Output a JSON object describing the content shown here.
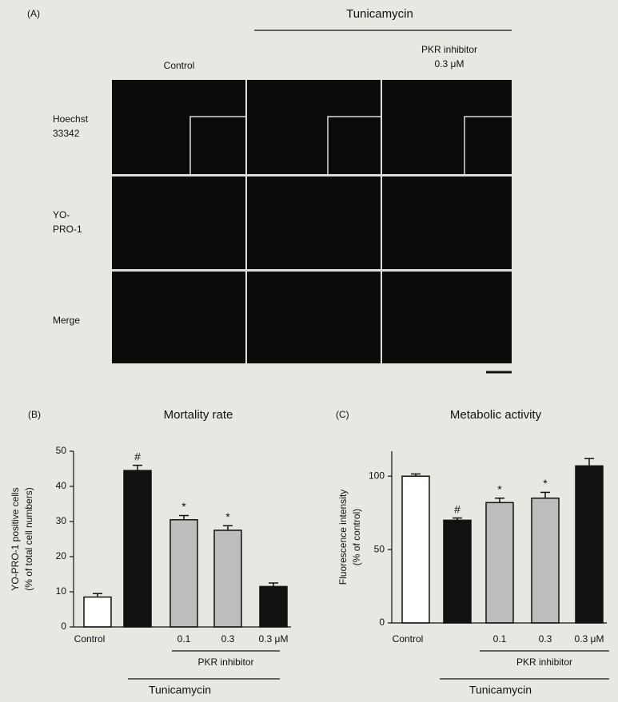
{
  "panel_a": {
    "panel_label": "(A)",
    "treatment": "Tunicamycin",
    "column_labels": [
      [
        "Control"
      ],
      [
        "PKR inhibitor",
        "0.3 μM"
      ]
    ],
    "row_labels": [
      [
        "Hoechst",
        "33342"
      ],
      [
        "YO-",
        "PRO-1"
      ],
      [
        "Merge"
      ]
    ]
  },
  "chart_data": [
    {
      "type": "bar",
      "panel_label": "(B)",
      "title": "Mortality rate",
      "y_label": [
        "YO-PRO-1 positive cells",
        "(% of total cell numbers)"
      ],
      "categories": [
        "Control",
        null,
        "0.1",
        "0.3",
        "0.3 μM"
      ],
      "values": [
        8.5,
        44.5,
        30.5,
        27.5,
        11.5
      ],
      "errors": [
        1.0,
        1.5,
        1.2,
        1.3,
        1.0
      ],
      "markers": [
        null,
        "#",
        "*",
        "*",
        null
      ],
      "colors": [
        "#ffffff",
        "#111111",
        "#bdbdbd",
        "#bdbdbd",
        "#111111"
      ],
      "group_labels": [
        "PKR inhibitor",
        "Tunicamycin"
      ],
      "ylim": [
        0,
        50
      ],
      "yticks": [
        0,
        10,
        20,
        30,
        40,
        50
      ]
    },
    {
      "type": "bar",
      "panel_label": "(C)",
      "title": "Metabolic activity",
      "y_label": [
        "Fluorescence intensity",
        "(% of control)"
      ],
      "categories": [
        "Control",
        null,
        "0.1",
        "0.3",
        "0.3 μM"
      ],
      "values": [
        100,
        70,
        82,
        85,
        107
      ],
      "errors": [
        1.5,
        1.5,
        3,
        4,
        5
      ],
      "markers": [
        null,
        "#",
        "*",
        "*",
        null
      ],
      "colors": [
        "#ffffff",
        "#111111",
        "#bdbdbd",
        "#bdbdbd",
        "#111111"
      ],
      "group_labels": [
        "PKR inhibitor",
        "Tunicamycin"
      ],
      "ylim": [
        0,
        117
      ],
      "yticks": [
        0,
        50,
        100
      ]
    }
  ]
}
